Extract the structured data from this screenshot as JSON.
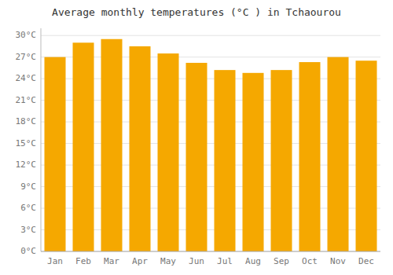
{
  "chart_data": {
    "type": "bar",
    "title": "Average monthly temperatures (°C ) in Tchaourou",
    "categories": [
      "Jan",
      "Feb",
      "Mar",
      "Apr",
      "May",
      "Jun",
      "Jul",
      "Aug",
      "Sep",
      "Oct",
      "Nov",
      "Dec"
    ],
    "values": [
      27,
      29,
      29.5,
      28.5,
      27.5,
      26.2,
      25.2,
      24.8,
      25.2,
      26.3,
      27,
      26.5
    ],
    "color": "#F5A800",
    "ylim": [
      0,
      31
    ],
    "yticks": [
      {
        "value": 0,
        "label": "0°C"
      },
      {
        "value": 3,
        "label": "3°C"
      },
      {
        "value": 6,
        "label": "6°C"
      },
      {
        "value": 9,
        "label": "9°C"
      },
      {
        "value": 12,
        "label": "12°C"
      },
      {
        "value": 15,
        "label": "15°C"
      },
      {
        "value": 18,
        "label": "18°C"
      },
      {
        "value": 21,
        "label": "21°C"
      },
      {
        "value": 24,
        "label": "24°C"
      },
      {
        "value": 27,
        "label": "27°C"
      },
      {
        "value": 30,
        "label": "30°C"
      }
    ],
    "grid": true
  }
}
